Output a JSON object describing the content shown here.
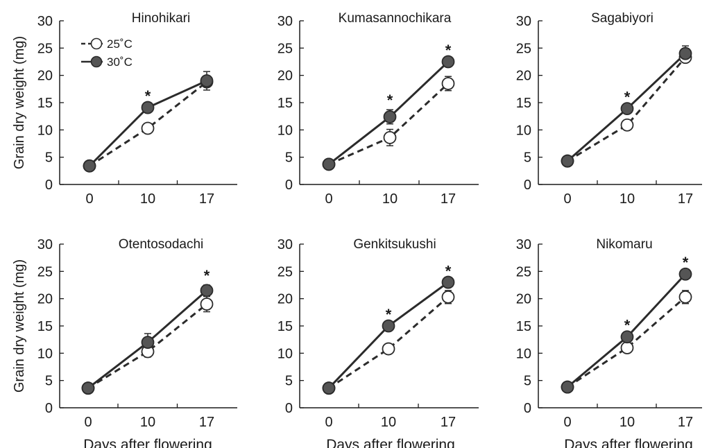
{
  "figure": {
    "ylabel": "Grain dry weight  (mg)",
    "xlabel": "Days after flowering",
    "legend": {
      "items": [
        {
          "label": "25˚C",
          "style": "open-circle-dashed"
        },
        {
          "label": "30˚C",
          "style": "filled-circle-solid"
        }
      ]
    },
    "colors": {
      "line": "#2b2b2b",
      "filled_marker": "#555555",
      "open_marker": "#ffffff",
      "axis": "#1a1a1a"
    }
  },
  "chart_data": [
    {
      "type": "line",
      "title": "Hinohikari",
      "x": [
        0,
        10,
        17
      ],
      "x_tick_labels": [
        "0",
        "10",
        "17"
      ],
      "ylim": [
        0,
        30
      ],
      "y_ticks": [
        0,
        5,
        10,
        15,
        20,
        25,
        30
      ],
      "series": [
        {
          "name": "25˚C",
          "values": [
            3.4,
            10.3,
            18.8
          ],
          "error": [
            0,
            0.4,
            0.7
          ]
        },
        {
          "name": "30˚C",
          "values": [
            3.4,
            14.1,
            19.0
          ],
          "error": [
            0,
            0.4,
            1.7
          ]
        }
      ],
      "significance": [
        "",
        "*",
        ""
      ],
      "show_legend": true
    },
    {
      "type": "line",
      "title": "Kumasannochikara",
      "x": [
        0,
        10,
        17
      ],
      "x_tick_labels": [
        "0",
        "10",
        "17"
      ],
      "ylim": [
        0,
        30
      ],
      "y_ticks": [
        0,
        5,
        10,
        15,
        20,
        25,
        30
      ],
      "series": [
        {
          "name": "25˚C",
          "values": [
            3.7,
            8.6,
            18.5
          ],
          "error": [
            0,
            1.5,
            1.3
          ]
        },
        {
          "name": "30˚C",
          "values": [
            3.7,
            12.4,
            22.5
          ],
          "error": [
            0,
            1.3,
            0.4
          ]
        }
      ],
      "significance": [
        "",
        "*",
        "*"
      ],
      "show_legend": false
    },
    {
      "type": "line",
      "title": "Sagabiyori",
      "x": [
        0,
        10,
        17
      ],
      "x_tick_labels": [
        "0",
        "10",
        "17"
      ],
      "ylim": [
        0,
        30
      ],
      "y_ticks": [
        0,
        5,
        10,
        15,
        20,
        25,
        30
      ],
      "series": [
        {
          "name": "25˚C",
          "values": [
            4.3,
            10.9,
            23.3
          ],
          "error": [
            0,
            0.5,
            0.6
          ]
        },
        {
          "name": "30˚C",
          "values": [
            4.3,
            13.9,
            24.0
          ],
          "error": [
            0,
            0.4,
            1.4
          ]
        }
      ],
      "significance": [
        "",
        "*",
        ""
      ],
      "show_legend": false
    },
    {
      "type": "line",
      "title": "Otentosodachi",
      "x": [
        0,
        10,
        17
      ],
      "x_tick_labels": [
        "0",
        "10",
        "17"
      ],
      "ylim": [
        0,
        30
      ],
      "y_ticks": [
        0,
        5,
        10,
        15,
        20,
        25,
        30
      ],
      "series": [
        {
          "name": "25˚C",
          "values": [
            3.6,
            10.3,
            19.0
          ],
          "error": [
            0,
            1.0,
            1.4
          ]
        },
        {
          "name": "30˚C",
          "values": [
            3.6,
            12.0,
            21.5
          ],
          "error": [
            0,
            1.6,
            1.0
          ]
        }
      ],
      "significance": [
        "",
        "",
        "*"
      ],
      "show_legend": false
    },
    {
      "type": "line",
      "title": "Genkitsukushi",
      "x": [
        0,
        10,
        17
      ],
      "x_tick_labels": [
        "0",
        "10",
        "17"
      ],
      "ylim": [
        0,
        30
      ],
      "y_ticks": [
        0,
        5,
        10,
        15,
        20,
        25,
        30
      ],
      "series": [
        {
          "name": "25˚C",
          "values": [
            3.6,
            10.8,
            20.3
          ],
          "error": [
            0,
            0.4,
            1.2
          ]
        },
        {
          "name": "30˚C",
          "values": [
            3.6,
            15.0,
            23.0
          ],
          "error": [
            0,
            0.4,
            0.3
          ]
        }
      ],
      "significance": [
        "",
        "*",
        "*"
      ],
      "show_legend": false
    },
    {
      "type": "line",
      "title": "Nikomaru",
      "x": [
        0,
        10,
        17
      ],
      "x_tick_labels": [
        "0",
        "10",
        "17"
      ],
      "ylim": [
        0,
        30
      ],
      "y_ticks": [
        0,
        5,
        10,
        15,
        20,
        25,
        30
      ],
      "series": [
        {
          "name": "25˚C",
          "values": [
            3.8,
            11.0,
            20.3
          ],
          "error": [
            0,
            0.4,
            1.2
          ]
        },
        {
          "name": "30˚C",
          "values": [
            3.8,
            13.0,
            24.5
          ],
          "error": [
            0,
            0.4,
            0.4
          ]
        }
      ],
      "significance": [
        "",
        "*",
        "*"
      ],
      "show_legend": false
    }
  ]
}
